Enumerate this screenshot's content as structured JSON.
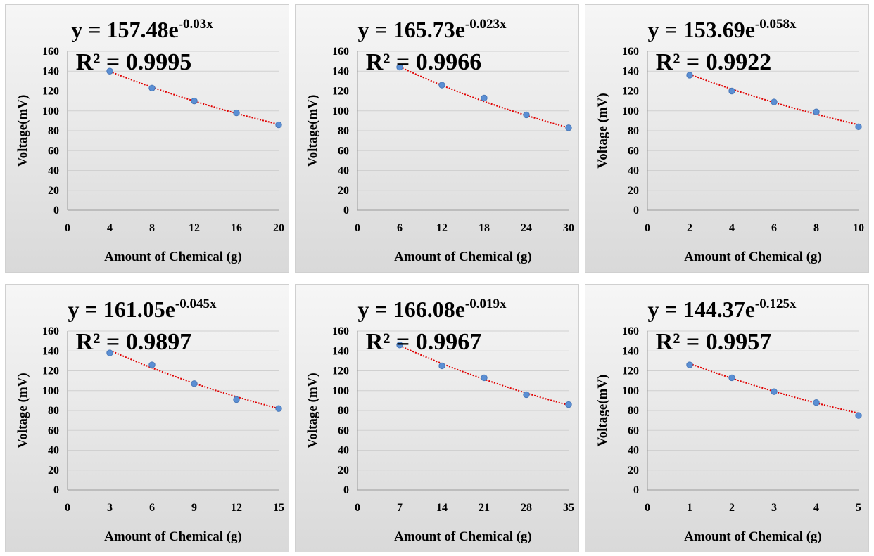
{
  "chart_data": [
    {
      "type": "scatter",
      "equation": {
        "base": "y = 157.48e",
        "exponent": "-0.03x"
      },
      "r_squared": "R² = 0.9995",
      "xlabel": "Amount of Chemical (g)",
      "ylabel": "Voltage(mV)",
      "xlim": [
        0,
        20
      ],
      "ylim": [
        0,
        160
      ],
      "xticks": [
        0,
        4,
        8,
        12,
        16,
        20
      ],
      "yticks": [
        0,
        20,
        40,
        60,
        80,
        100,
        120,
        140,
        160
      ],
      "trendline": {
        "type": "exponential",
        "a": 157.48,
        "b": -0.03
      },
      "x": [
        4,
        8,
        12,
        16,
        20
      ],
      "y": [
        140,
        123,
        110,
        98,
        86
      ],
      "grid": true
    },
    {
      "type": "scatter",
      "equation": {
        "base": "y = 165.73e",
        "exponent": "-0.023x"
      },
      "r_squared": "R² = 0.9966",
      "xlabel": "Amount of Chemical (g)",
      "ylabel": "Voltage(mV)",
      "xlim": [
        0,
        30
      ],
      "ylim": [
        0,
        160
      ],
      "xticks": [
        0,
        6,
        12,
        18,
        24,
        30
      ],
      "yticks": [
        0,
        20,
        40,
        60,
        80,
        100,
        120,
        140,
        160
      ],
      "trendline": {
        "type": "exponential",
        "a": 165.73,
        "b": -0.023
      },
      "x": [
        6,
        12,
        18,
        24,
        30
      ],
      "y": [
        144,
        126,
        113,
        96,
        83
      ],
      "grid": true
    },
    {
      "type": "scatter",
      "equation": {
        "base": "y = 153.69e",
        "exponent": "-0.058x"
      },
      "r_squared": "R² = 0.9922",
      "xlabel": "Amount of Chemical (g)",
      "ylabel": "Voltage (mV)",
      "xlim": [
        0,
        10
      ],
      "ylim": [
        0,
        160
      ],
      "xticks": [
        0,
        2,
        4,
        6,
        8,
        10
      ],
      "yticks": [
        0,
        20,
        40,
        60,
        80,
        100,
        120,
        140,
        160
      ],
      "trendline": {
        "type": "exponential",
        "a": 153.69,
        "b": -0.058
      },
      "x": [
        2,
        4,
        6,
        8,
        10
      ],
      "y": [
        136,
        120,
        109,
        99,
        84
      ],
      "grid": true
    },
    {
      "type": "scatter",
      "equation": {
        "base": "y = 161.05e",
        "exponent": "-0.045x"
      },
      "r_squared": "R² = 0.9897",
      "xlabel": "Amount of Chemical (g)",
      "ylabel": "Voltage (mV)",
      "xlim": [
        0,
        15
      ],
      "ylim": [
        0,
        160
      ],
      "xticks": [
        0,
        3,
        6,
        9,
        12,
        15
      ],
      "yticks": [
        0,
        20,
        40,
        60,
        80,
        100,
        120,
        140,
        160
      ],
      "trendline": {
        "type": "exponential",
        "a": 161.05,
        "b": -0.045
      },
      "x": [
        3,
        6,
        9,
        12,
        15
      ],
      "y": [
        138,
        126,
        107,
        91,
        82
      ],
      "grid": true
    },
    {
      "type": "scatter",
      "equation": {
        "base": "y = 166.08e",
        "exponent": "-0.019x"
      },
      "r_squared": "R² = 0.9967",
      "xlabel": "Amount of Chemical (g)",
      "ylabel": "Voltage (mV)",
      "xlim": [
        0,
        35
      ],
      "ylim": [
        0,
        160
      ],
      "xticks": [
        0,
        7,
        14,
        21,
        28,
        35
      ],
      "yticks": [
        0,
        20,
        40,
        60,
        80,
        100,
        120,
        140,
        160
      ],
      "trendline": {
        "type": "exponential",
        "a": 166.08,
        "b": -0.019
      },
      "x": [
        7,
        14,
        21,
        28,
        35
      ],
      "y": [
        146,
        125,
        113,
        96,
        86
      ],
      "grid": true
    },
    {
      "type": "scatter",
      "equation": {
        "base": "y = 144.37e",
        "exponent": "-0.125x"
      },
      "r_squared": "R² = 0.9957",
      "xlabel": "Amount of Chemical (g)",
      "ylabel": "Voltage(mV)",
      "xlim": [
        0,
        5
      ],
      "ylim": [
        0,
        160
      ],
      "xticks": [
        0,
        1,
        2,
        3,
        4,
        5
      ],
      "yticks": [
        0,
        20,
        40,
        60,
        80,
        100,
        120,
        140,
        160
      ],
      "trendline": {
        "type": "exponential",
        "a": 144.37,
        "b": -0.125
      },
      "x": [
        1,
        2,
        3,
        4,
        5
      ],
      "y": [
        126,
        113,
        99,
        88,
        75
      ],
      "grid": true
    }
  ],
  "colors": {
    "marker": "#5b8fd4",
    "trendline": "#e00000",
    "grid": "#d0d0d0"
  }
}
